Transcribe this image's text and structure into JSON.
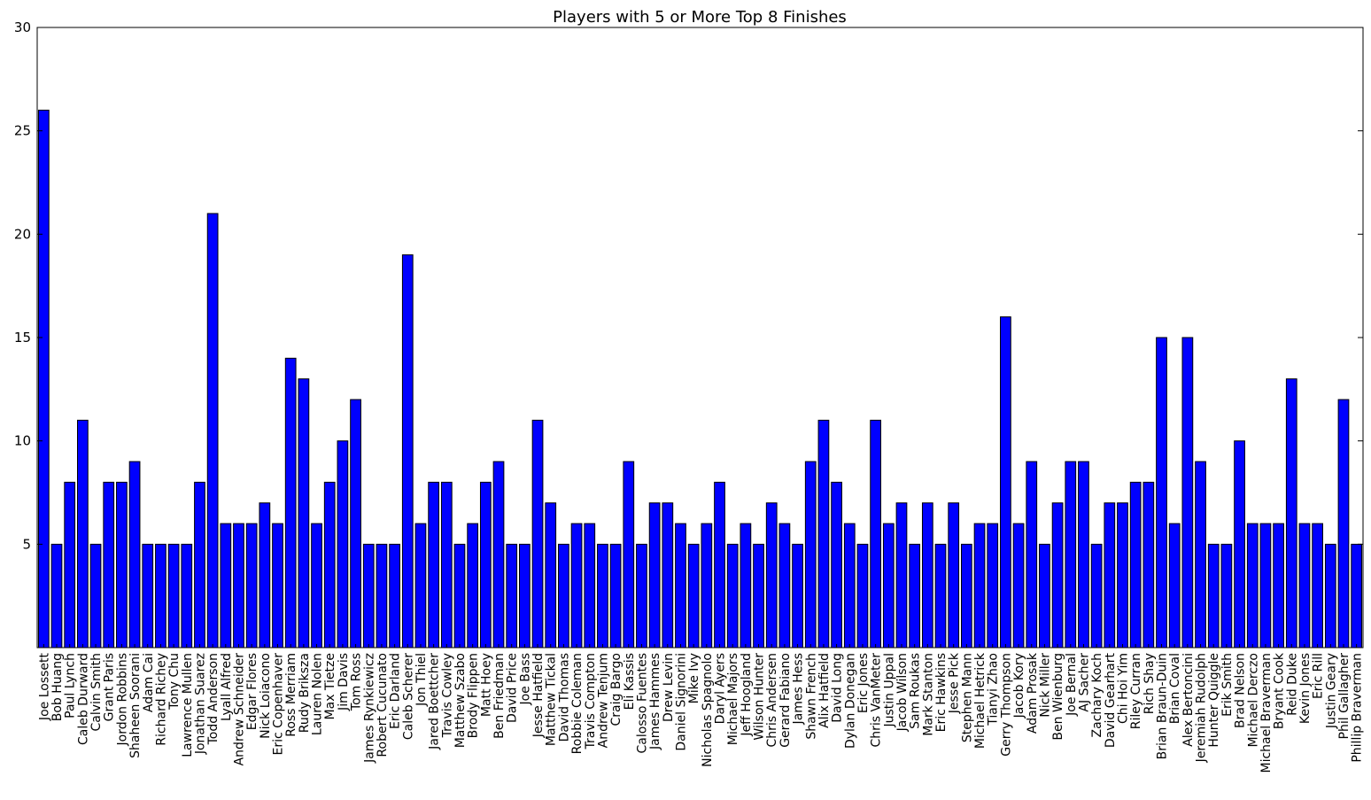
{
  "chart_data": {
    "type": "bar",
    "title": "Players with 5 or More Top 8 Finishes",
    "xlabel": "",
    "ylabel": "",
    "ylim": [
      0,
      30
    ],
    "yticks": [
      5,
      10,
      15,
      20,
      25,
      30
    ],
    "grid": false,
    "bar_color": "#0000ff",
    "edge_color": "#000000",
    "categories": [
      "Joe Lossett",
      "Bob Huang",
      "Paul Lynch",
      "Caleb Durward",
      "Calvin Smith",
      "Grant Paris",
      "Jordon Robbins",
      "Shaheen Soorani",
      "Adam Cai",
      "Richard Richey",
      "Tony Chu",
      "Lawrence Mullen",
      "Jonathan Suarez",
      "Todd Anderson",
      "Lyall Alfred",
      "Andrew Schneider",
      "Edgar Flores",
      "Nick Loiacono",
      "Eric Copenhaver",
      "Ross Merriam",
      "Rudy Briksza",
      "Lauren Nolen",
      "Max Tietze",
      "Jim Davis",
      "Tom Ross",
      "James Rynkiewicz",
      "Robert Cucunato",
      "Eric Darland",
      "Caleb Scherer",
      "Jon Thiel",
      "Jared Boettcher",
      "Travis Cowley",
      "Matthew Szabo",
      "Brody Flippen",
      "Matt Hoey",
      "Ben Friedman",
      "David Price",
      "Joe Bass",
      "Jesse Hatfield",
      "Matthew Tickal",
      "David Thomas",
      "Robbie Coleman",
      "Travis Compton",
      "Andrew Tenjum",
      "Craig Bargo",
      "Eli Kassis",
      "Calosso Fuentes",
      "James Hammes",
      "Drew Levin",
      "Daniel Signorini",
      "Mike Ivy",
      "Nicholas Spagnolo",
      "Daryl Ayers",
      "Michael Majors",
      "Jeff Hoogland",
      "Wilson Hunter",
      "Chris Andersen",
      "Gerard Fabiano",
      "James Hess",
      "Shawn French",
      "Alix Hatfield",
      "David Long",
      "Dylan Donegan",
      "Eric Jones",
      "Chris VanMeter",
      "Justin Uppal",
      "Jacob Wilson",
      "Sam Roukas",
      "Mark Stanton",
      "Eric Hawkins",
      "Jesse Pick",
      "Stephen Mann",
      "Michael Hetrick",
      "Tianyi Zhao",
      "Gerry Thompson",
      "Jacob Kory",
      "Adam Prosak",
      "Nick Miller",
      "Ben Wienburg",
      "Joe Bernal",
      "AJ Sacher",
      "Zachary Koch",
      "David Gearhart",
      "Chi Hoi Yim",
      "Riley Curran",
      "Rich Shay",
      "Brian Braun-Duin",
      "Brian Coval",
      "Alex Bertoncini",
      "Jeremiah Rudolph",
      "Hunter Quiggle",
      "Erik Smith",
      "Brad Nelson",
      "Michael Derczo",
      "Michael Braverman",
      "Bryant Cook",
      "Reid Duke",
      "Kevin Jones",
      "Eric Rill",
      "Justin Geary",
      "Phil Gallagher",
      "Phillip Braverman"
    ],
    "values": [
      26,
      5,
      8,
      11,
      5,
      8,
      8,
      9,
      5,
      5,
      5,
      5,
      8,
      21,
      6,
      6,
      6,
      7,
      6,
      14,
      13,
      6,
      8,
      10,
      12,
      5,
      5,
      5,
      19,
      6,
      8,
      8,
      5,
      6,
      8,
      9,
      5,
      5,
      11,
      7,
      5,
      6,
      6,
      5,
      5,
      9,
      5,
      7,
      7,
      6,
      5,
      6,
      8,
      5,
      6,
      5,
      7,
      6,
      5,
      9,
      11,
      8,
      6,
      5,
      11,
      6,
      7,
      5,
      7,
      5,
      7,
      5,
      6,
      6,
      16,
      6,
      9,
      5,
      7,
      9,
      9,
      5,
      7,
      7,
      8,
      8,
      15,
      6,
      15,
      9,
      5,
      5,
      10,
      6,
      6,
      6,
      13,
      6,
      6,
      5,
      12,
      5
    ]
  }
}
